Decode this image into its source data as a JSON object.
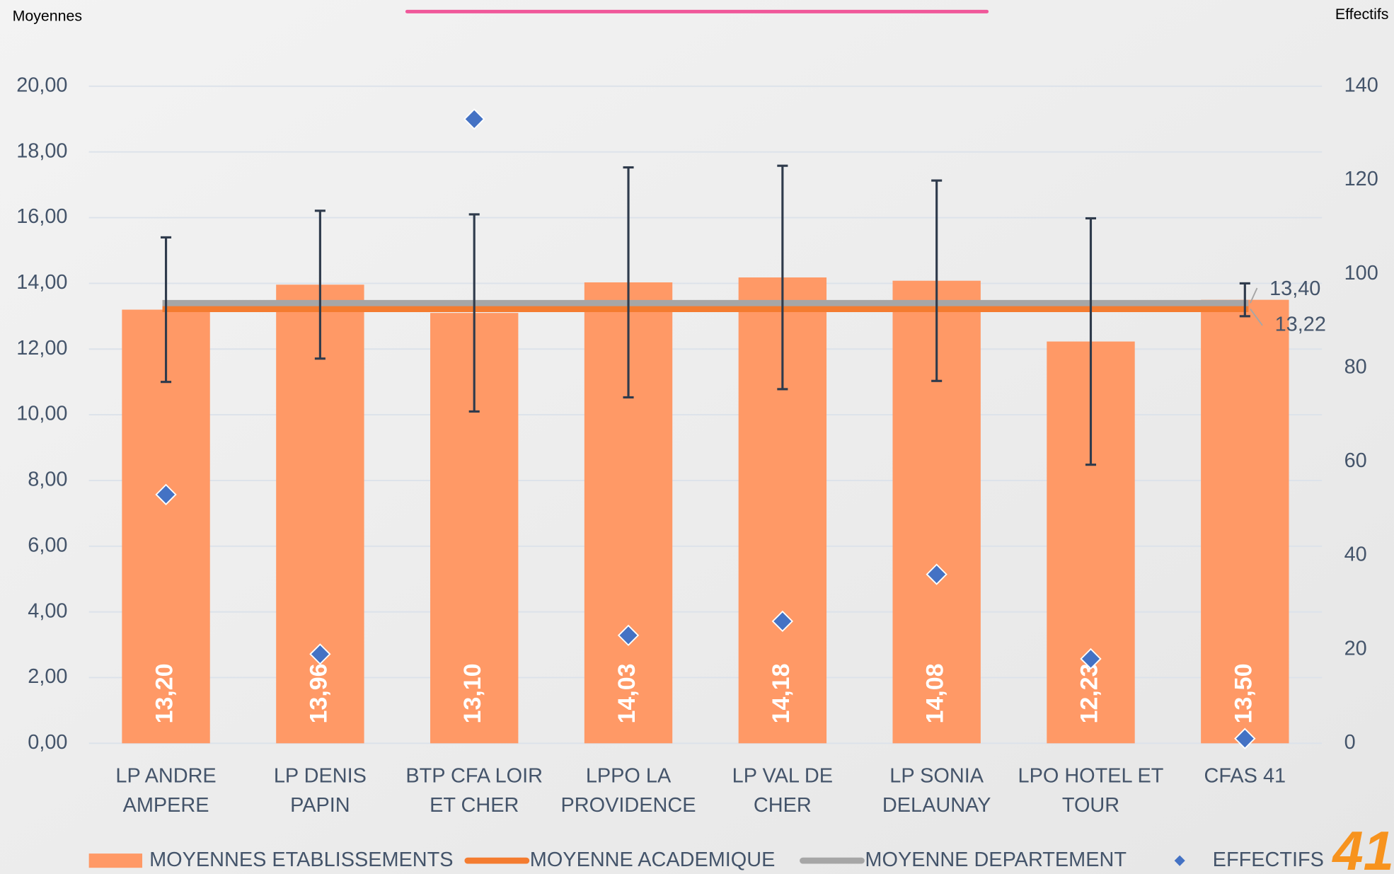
{
  "chart_data": {
    "type": "bar",
    "y_label": "Moyennes",
    "y2_label": "Effectifs",
    "logo_text": "41",
    "categories": [
      [
        "LP ANDRE",
        "AMPERE"
      ],
      [
        "LP DENIS",
        "PAPIN"
      ],
      [
        "BTP CFA LOIR",
        "ET CHER"
      ],
      [
        "LPPO LA",
        "PROVIDENCE"
      ],
      [
        "LP VAL DE",
        "CHER"
      ],
      [
        "LP SONIA",
        "DELAUNAY"
      ],
      [
        "LPO HOTEL ET",
        "TOUR"
      ],
      [
        "CFAS 41"
      ]
    ],
    "series": [
      {
        "name": "MOYENNES ETABLISSEMENTS",
        "type": "bar",
        "color": "#ff9966",
        "values": [
          13.2,
          13.96,
          13.1,
          14.03,
          14.18,
          14.08,
          12.23,
          13.5
        ],
        "value_labels": [
          "13,20",
          "13,96",
          "13,10",
          "14,03",
          "14,18",
          "14,08",
          "12,23",
          "13,50"
        ],
        "errors": [
          2.2,
          2.25,
          3.0,
          3.5,
          3.4,
          3.05,
          3.75,
          0.5
        ]
      },
      {
        "name": "MOYENNE ACADEMIQUE",
        "type": "hline",
        "color": "#f47c30",
        "value": 13.22,
        "value_label": "13,22"
      },
      {
        "name": "MOYENNE DEPARTEMENT",
        "type": "hline",
        "color": "#a6a6a6",
        "value": 13.4,
        "value_label": "13,40"
      },
      {
        "name": "EFFECTIFS",
        "type": "scatter",
        "axis": "y2",
        "color": "#4472c4",
        "values": [
          53,
          19,
          133,
          23,
          26,
          36,
          18,
          1
        ]
      }
    ],
    "ylim": [
      0,
      20
    ],
    "yticks": [
      {
        "value": 0,
        "label": "0,00"
      },
      {
        "value": 2,
        "label": "2,00"
      },
      {
        "value": 4,
        "label": "4,00"
      },
      {
        "value": 6,
        "label": "6,00"
      },
      {
        "value": 8,
        "label": "8,00"
      },
      {
        "value": 10,
        "label": "10,00"
      },
      {
        "value": 12,
        "label": "12,00"
      },
      {
        "value": 14,
        "label": "14,00"
      },
      {
        "value": 16,
        "label": "16,00"
      },
      {
        "value": 18,
        "label": "18,00"
      },
      {
        "value": 20,
        "label": "20,00"
      }
    ],
    "y2lim": [
      0,
      140
    ],
    "y2ticks": [
      0,
      20,
      40,
      60,
      80,
      100,
      120,
      140
    ],
    "grid": true
  }
}
